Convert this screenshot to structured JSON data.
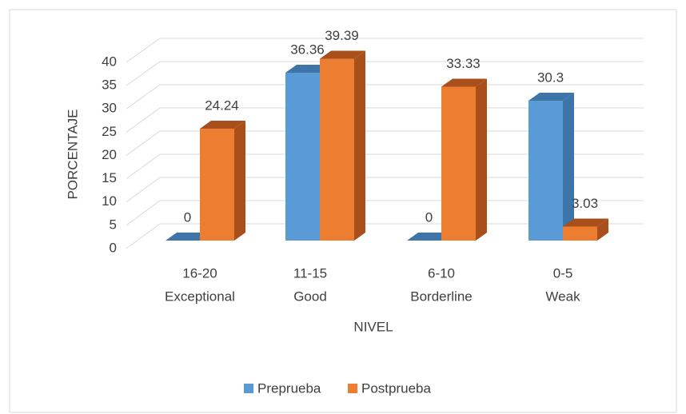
{
  "chart_data": {
    "type": "bar3d",
    "x_label": "NIVEL",
    "y_label": "PORCENTAJE",
    "categories": [
      [
        "16-20",
        "Exceptional"
      ],
      [
        "11-15",
        "Good"
      ],
      [
        "6-10",
        "Borderline"
      ],
      [
        "0-5",
        "Weak"
      ]
    ],
    "series": [
      {
        "name": "Preprueba",
        "color": "#5b9bd5",
        "side_color": "#3e75a8",
        "values": [
          0,
          36.36,
          0,
          30.3
        ]
      },
      {
        "name": "Postprueba",
        "color": "#ed7d31",
        "side_color": "#a84f1b",
        "values": [
          24.24,
          39.39,
          33.33,
          3.03
        ]
      }
    ],
    "ylim": [
      0,
      40
    ],
    "yticks": [
      0,
      5,
      10,
      15,
      20,
      25,
      30,
      35,
      40
    ],
    "grid": true,
    "legend": "bottom"
  }
}
